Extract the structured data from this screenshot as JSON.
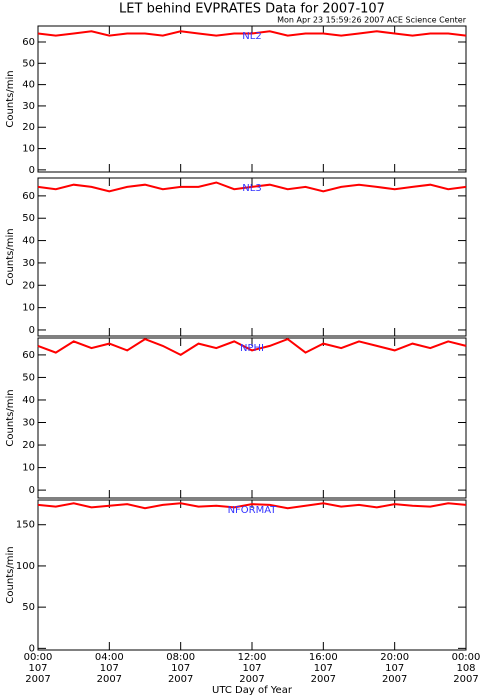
{
  "title": "LET behind EVPRATES Data for 2007-107",
  "subtitle": "Mon Apr 23 15:59:26 2007 ACE Science Center",
  "chart_data": [
    {
      "type": "line",
      "ylabel": "Counts/min",
      "xlim": [
        0,
        24
      ],
      "xticks": [
        0,
        4,
        8,
        12,
        16,
        20,
        24
      ],
      "ylim": [
        -1,
        67.5
      ],
      "yticks": [
        0,
        10,
        20,
        30,
        40,
        50,
        60
      ],
      "x": [
        0,
        1,
        2,
        3,
        4,
        5,
        6,
        7,
        8,
        9,
        10,
        11,
        12,
        13,
        14,
        15,
        16,
        17,
        18,
        19,
        20,
        21,
        22,
        23,
        24
      ],
      "series": [
        {
          "name": "NL2",
          "color": "#ff0000",
          "label_color": "#3333ff",
          "values": [
            64,
            63,
            64,
            65,
            63,
            64,
            64,
            63,
            65,
            64,
            63,
            64,
            64,
            65,
            63,
            64,
            64,
            63,
            64,
            65,
            64,
            63,
            64,
            64,
            63
          ]
        }
      ]
    },
    {
      "type": "line",
      "ylabel": "Counts/min",
      "xlim": [
        0,
        24
      ],
      "xticks": [
        0,
        4,
        8,
        12,
        16,
        20,
        24
      ],
      "ylim": [
        -2.7,
        68
      ],
      "yticks": [
        0,
        10,
        20,
        30,
        40,
        50,
        60
      ],
      "x": [
        0,
        1,
        2,
        3,
        4,
        5,
        6,
        7,
        8,
        9,
        10,
        11,
        12,
        13,
        14,
        15,
        16,
        17,
        18,
        19,
        20,
        21,
        22,
        23,
        24
      ],
      "series": [
        {
          "name": "NL3",
          "color": "#ff0000",
          "label_color": "#3333ff",
          "values": [
            64,
            63,
            65,
            64,
            62,
            64,
            65,
            63,
            64,
            64,
            66,
            63,
            64,
            65,
            63,
            64,
            62,
            64,
            65,
            64,
            63,
            64,
            65,
            63,
            64
          ]
        }
      ]
    },
    {
      "type": "line",
      "ylabel": "Counts/min",
      "xlim": [
        0,
        24
      ],
      "xticks": [
        0,
        4,
        8,
        12,
        16,
        20,
        24
      ],
      "ylim": [
        -3.5,
        67.5
      ],
      "yticks": [
        0,
        10,
        20,
        30,
        40,
        50,
        60
      ],
      "x": [
        0,
        1,
        2,
        3,
        4,
        5,
        6,
        7,
        8,
        9,
        10,
        11,
        12,
        13,
        14,
        15,
        16,
        17,
        18,
        19,
        20,
        21,
        22,
        23,
        24
      ],
      "series": [
        {
          "name": "NPHI",
          "color": "#ff0000",
          "label_color": "#3333ff",
          "values": [
            64,
            61,
            66,
            63,
            65,
            62,
            67,
            64,
            60,
            65,
            63,
            66,
            62,
            64,
            67,
            61,
            65,
            63,
            66,
            64,
            62,
            65,
            63,
            66,
            64
          ]
        }
      ]
    },
    {
      "type": "line",
      "ylabel": "Counts/min",
      "xlabel": "UTC Day of Year",
      "xlim": [
        0,
        24
      ],
      "xticks": [
        {
          "value": 0,
          "label": [
            "00:00",
            "107",
            "2007"
          ]
        },
        {
          "value": 4,
          "label": [
            "04:00",
            "107",
            "2007"
          ]
        },
        {
          "value": 8,
          "label": [
            "08:00",
            "107",
            "2007"
          ]
        },
        {
          "value": 12,
          "label": [
            "12:00",
            "107",
            "2007"
          ]
        },
        {
          "value": 16,
          "label": [
            "16:00",
            "107",
            "2007"
          ]
        },
        {
          "value": 20,
          "label": [
            "20:00",
            "107",
            "2007"
          ]
        },
        {
          "value": 24,
          "label": [
            "00:00",
            "108",
            "2007"
          ]
        }
      ],
      "ylim": [
        -2,
        180
      ],
      "yticks": [
        0,
        50,
        100,
        150
      ],
      "x": [
        0,
        1,
        2,
        3,
        4,
        5,
        6,
        7,
        8,
        9,
        10,
        11,
        12,
        13,
        14,
        15,
        16,
        17,
        18,
        19,
        20,
        21,
        22,
        23,
        24
      ],
      "series": [
        {
          "name": "NFORMAT",
          "color": "#ff0000",
          "label_color": "#3333ff",
          "values": [
            174,
            172,
            176,
            171,
            173,
            175,
            170,
            174,
            176,
            172,
            173,
            171,
            175,
            174,
            170,
            173,
            176,
            172,
            174,
            171,
            175,
            173,
            172,
            176,
            174
          ]
        }
      ]
    }
  ]
}
